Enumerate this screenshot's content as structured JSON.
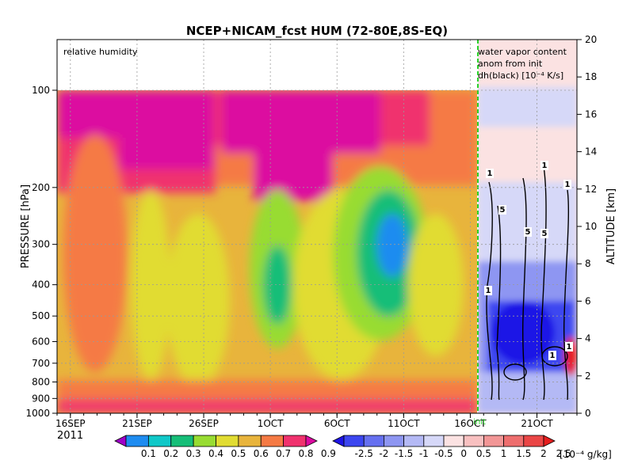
{
  "chart_data": {
    "type": "heatmap",
    "title": "NCEP+NICAM_fcst HUM (72-80E,8S-EQ)",
    "left_panel_label": "relative humidity",
    "right_panel_label_lines": [
      "water vapor content",
      "anom from init",
      "dh(black) [10⁻⁴ K/s]"
    ],
    "ylabel_left": "PRESSURE [hPa]",
    "ylabel_right": "ALTITUDE [km]",
    "y_left_ticks": [
      "100",
      "200",
      "300",
      "400",
      "500",
      "600",
      "700",
      "800",
      "900",
      "1000"
    ],
    "y_right_ticks": [
      "0",
      "2",
      "4",
      "6",
      "8",
      "10",
      "12",
      "14",
      "16",
      "18",
      "20"
    ],
    "x_ticks": [
      "16SEP",
      "21SEP",
      "26SEP",
      "1OCT",
      "6OCT",
      "11OCT",
      "16OCT",
      "21OCT"
    ],
    "x_year": "2011",
    "init_label": "init",
    "contour_labels": [
      "1",
      "1",
      "1",
      "5",
      "5",
      "5",
      "1",
      "1",
      "1"
    ],
    "rh_colorbar": {
      "labels": [
        "0.1",
        "0.2",
        "0.3",
        "0.4",
        "0.5",
        "0.6",
        "0.7",
        "0.8",
        "0.9"
      ],
      "colors": [
        "#9f00c8",
        "#1e8cf0",
        "#10c8c8",
        "#16be78",
        "#98dc32",
        "#e1dc32",
        "#e8b43c",
        "#f57a44",
        "#f0326e",
        "#dc0aa0"
      ]
    },
    "anom_colorbar": {
      "labels": [
        "-2.5",
        "-2",
        "-1.5",
        "-1",
        "-0.5",
        "0",
        "0.5",
        "1",
        "1.5",
        "2",
        "2.5"
      ],
      "colors": [
        "#1e14e6",
        "#3c46f0",
        "#6670f0",
        "#8e96f2",
        "#b4b9f5",
        "#d6d8f8",
        "#fbe2e2",
        "#f8c0c0",
        "#f29696",
        "#ee6e6e",
        "#ea4646",
        "#e61e1e"
      ],
      "unit": "[10⁻⁴ g/kg]"
    },
    "x_range": [
      "2011-09-15",
      "2011-10-24"
    ],
    "y_pressure_range": [
      1000,
      100
    ],
    "y_altitude_range": [
      0,
      20
    ]
  }
}
